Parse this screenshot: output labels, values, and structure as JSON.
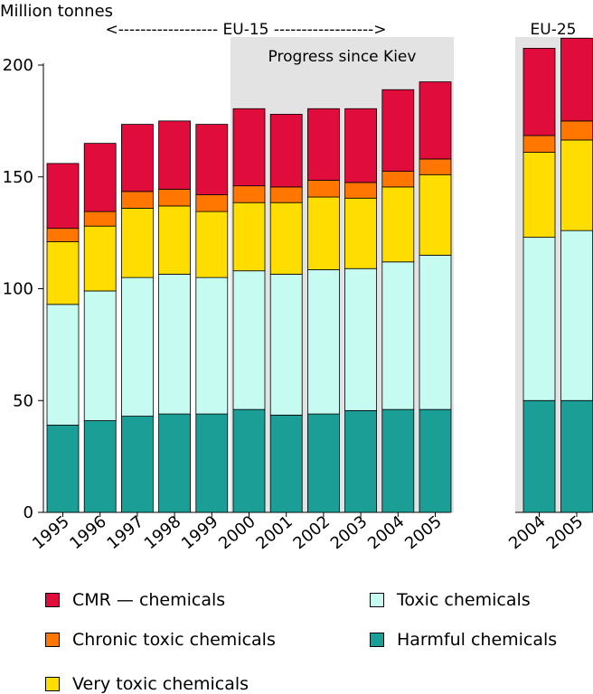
{
  "chart_data": {
    "type": "bar",
    "stacked": true,
    "ylabel": "Million tonnes",
    "ylim": [
      0,
      200
    ],
    "yticks": [
      0,
      50,
      100,
      150,
      200
    ],
    "groups": [
      {
        "label": "EU-15",
        "label_text": "<------------------ EU-15 ------------------>",
        "categories": [
          "1995",
          "1996",
          "1997",
          "1998",
          "1999",
          "2000",
          "2001",
          "2002",
          "2003",
          "2004",
          "2005"
        ]
      },
      {
        "label": "EU-25",
        "categories": [
          "2004",
          "2005"
        ]
      }
    ],
    "highlight": {
      "label": "Progress since Kiev",
      "from": "2000",
      "to": "2005",
      "group": "EU-15"
    },
    "series": [
      {
        "name": "Harmful chemicals",
        "color": "#1a9e96",
        "values": [
          39,
          41,
          43,
          44,
          44,
          46,
          43.5,
          44,
          45.5,
          46,
          46,
          50,
          50
        ]
      },
      {
        "name": "Toxic chemicals",
        "color": "#c6fbf2",
        "values": [
          54,
          58,
          62,
          62.5,
          61,
          62,
          63,
          64.5,
          63.5,
          66,
          69,
          73,
          76
        ]
      },
      {
        "name": "Very toxic chemicals",
        "color": "#ffdd00",
        "values": [
          28,
          29,
          31,
          30.5,
          29.5,
          30.5,
          32,
          32.5,
          31.5,
          33.5,
          36,
          38,
          40.5
        ]
      },
      {
        "name": "Chronic toxic chemicals",
        "color": "#ff7600",
        "values": [
          6,
          6.5,
          7.5,
          7.5,
          7.5,
          7.5,
          7,
          7.5,
          7,
          7,
          7,
          7.5,
          8.5
        ]
      },
      {
        "name": "CMR — chemicals",
        "color": "#e00c3c",
        "values": [
          29,
          30.5,
          30,
          30.5,
          31.5,
          34.5,
          32.5,
          32,
          33,
          36.5,
          34.5,
          39,
          37
        ]
      }
    ],
    "legend": {
      "column1": [
        "CMR — chemicals",
        "Chronic toxic chemicals",
        "Very toxic chemicals"
      ],
      "column2": [
        "Toxic chemicals",
        "Harmful chemicals"
      ]
    }
  }
}
